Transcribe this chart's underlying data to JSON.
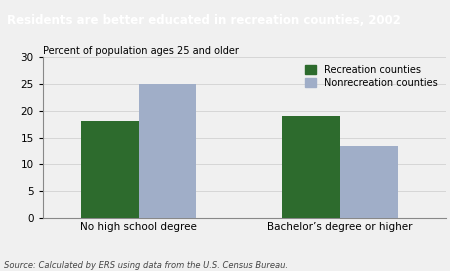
{
  "title": "Residents are better educated in recreation counties, 2002",
  "title_bg_color": "#1e3a8a",
  "title_text_color": "#ffffff",
  "ylabel": "Percent of population ages 25 and older",
  "categories": [
    "No high school degree",
    "Bachelor’s degree or higher"
  ],
  "series": [
    {
      "label": "Recreation counties",
      "values": [
        18.0,
        19.0
      ],
      "color": "#2d6b2d"
    },
    {
      "label": "Nonrecreation counties",
      "values": [
        25.0,
        13.5
      ],
      "color": "#a0aec8"
    }
  ],
  "ylim": [
    0,
    30
  ],
  "yticks": [
    0,
    5,
    10,
    15,
    20,
    25,
    30
  ],
  "source": "Source: Calculated by ERS using data from the U.S. Census Bureau.",
  "bar_width": 0.3,
  "legend_loc": "upper right",
  "bg_color": "#f0f0f0",
  "plot_bg_color": "#f0f0f0",
  "title_fontsize": 8.5,
  "ylabel_fontsize": 7.0,
  "tick_fontsize": 7.5,
  "xlabel_fontsize": 7.5,
  "legend_fontsize": 7.0,
  "source_fontsize": 6.0
}
